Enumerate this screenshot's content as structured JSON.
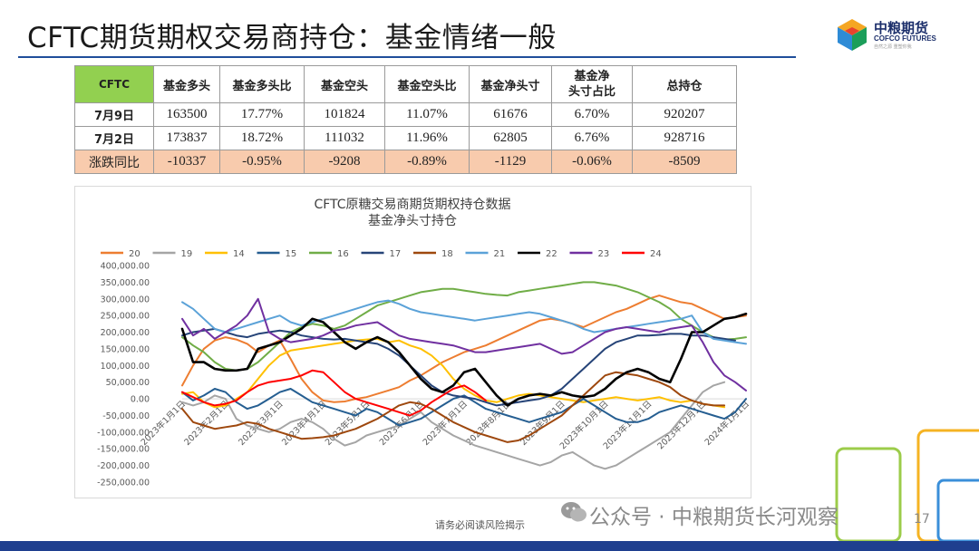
{
  "title": "CFTC期货期权交易商持仓：基金情绪一般",
  "logo": {
    "cn": "中粮期货",
    "en": "COFCO FUTURES",
    "tag": "自然之源 重塑你我"
  },
  "table": {
    "headers": [
      "CFTC",
      "基金多头",
      "基金多头比",
      "基金空头",
      "基金空头比",
      "基金净头寸",
      "基金净头寸占比",
      "总持仓"
    ],
    "header_lines": {
      "6a": "基金净",
      "6b": "头寸占比"
    },
    "rows": [
      {
        "label": "7月9日",
        "cells": [
          "163500",
          "17.77%",
          "101824",
          "11.07%",
          "61676",
          "6.70%",
          "920207"
        ]
      },
      {
        "label": "7月2日",
        "cells": [
          "173837",
          "18.72%",
          "111032",
          "11.96%",
          "62805",
          "6.76%",
          "928716"
        ]
      },
      {
        "label": "涨跌同比",
        "cells": [
          "-10337",
          "-0.95%",
          "-9208",
          "-0.89%",
          "-1129",
          "-0.06%",
          "-8509"
        ]
      }
    ]
  },
  "chart_data": {
    "type": "line",
    "title": "CFTC原糖交易商期货期权持仓数据",
    "subtitle": "基金净头寸持仓",
    "ylim": [
      -250000,
      400000
    ],
    "yticks": [
      "400,000.00",
      "350,000.00",
      "300,000.00",
      "250,000.00",
      "200,000.00",
      "150,000.00",
      "100,000.00",
      "50,000.00",
      "0.00",
      "-50,000.00",
      "-100,000.00",
      "-150,000.00",
      "-200,000.00",
      "-250,000.00"
    ],
    "xticks": [
      "2023年1月1日",
      "2023年2月1日",
      "2023年3月1日",
      "2023年4月1日",
      "2023年5月1日",
      "2023年6月1日",
      "2023年7月1日",
      "2023年8月1日",
      "2023年9月1日",
      "2023年10月1日",
      "2023年11月1日",
      "2023年12月1日",
      "2024年1月1日"
    ],
    "x_count": 53,
    "legend_position": "top",
    "grid": false,
    "series": [
      {
        "name": "20",
        "color": "#ed7d31",
        "width": 2,
        "values": [
          40000,
          100000,
          150000,
          175000,
          185000,
          178000,
          165000,
          140000,
          160000,
          175000,
          120000,
          60000,
          20000,
          -5000,
          -10000,
          -8000,
          0,
          5000,
          15000,
          25000,
          35000,
          55000,
          70000,
          90000,
          110000,
          125000,
          140000,
          150000,
          160000,
          175000,
          190000,
          205000,
          220000,
          235000,
          240000,
          235000,
          225000,
          215000,
          230000,
          245000,
          260000,
          270000,
          285000,
          300000,
          310000,
          300000,
          290000,
          285000,
          270000,
          255000,
          240000,
          245000,
          250000
        ]
      },
      {
        "name": "19",
        "color": "#a5a5a5",
        "width": 2,
        "values": [
          -10000,
          -20000,
          -10000,
          10000,
          0,
          -60000,
          -80000,
          -90000,
          -100000,
          -90000,
          -70000,
          -60000,
          -70000,
          -90000,
          -120000,
          -140000,
          -130000,
          -110000,
          -100000,
          -90000,
          -80000,
          -60000,
          -40000,
          -70000,
          -90000,
          -110000,
          -125000,
          -140000,
          -150000,
          -160000,
          -170000,
          -180000,
          -190000,
          -200000,
          -190000,
          -170000,
          -160000,
          -180000,
          -200000,
          -210000,
          -200000,
          -180000,
          -160000,
          -140000,
          -120000,
          -100000,
          -60000,
          -20000,
          20000,
          40000,
          50000,
          null,
          null
        ]
      },
      {
        "name": "14",
        "color": "#ffc000",
        "width": 2,
        "values": [
          15000,
          20000,
          -10000,
          -25000,
          -20000,
          0,
          20000,
          60000,
          100000,
          130000,
          145000,
          150000,
          155000,
          160000,
          165000,
          170000,
          175000,
          178000,
          180000,
          170000,
          175000,
          160000,
          150000,
          130000,
          100000,
          60000,
          30000,
          10000,
          -5000,
          -10000,
          0,
          10000,
          15000,
          10000,
          5000,
          0,
          -5000,
          -10000,
          -5000,
          0,
          5000,
          0,
          -5000,
          0,
          5000,
          -5000,
          -10000,
          -5000,
          -15000,
          -20000,
          -25000,
          null,
          null
        ]
      },
      {
        "name": "15",
        "color": "#255e91",
        "width": 2,
        "values": [
          20000,
          -5000,
          10000,
          30000,
          20000,
          -10000,
          -30000,
          -20000,
          0,
          20000,
          30000,
          10000,
          -10000,
          -20000,
          -30000,
          -40000,
          -50000,
          -30000,
          -40000,
          -60000,
          -80000,
          -70000,
          -60000,
          -40000,
          -20000,
          0,
          10000,
          -10000,
          -30000,
          -40000,
          -50000,
          -60000,
          -70000,
          -60000,
          -50000,
          -40000,
          -20000,
          0,
          -20000,
          -40000,
          -60000,
          -70000,
          -70000,
          -60000,
          -40000,
          -30000,
          -20000,
          -30000,
          -40000,
          -50000,
          -60000,
          -40000,
          0
        ]
      },
      {
        "name": "16",
        "color": "#70ad47",
        "width": 2,
        "values": [
          185000,
          160000,
          140000,
          110000,
          90000,
          85000,
          90000,
          110000,
          140000,
          170000,
          200000,
          215000,
          225000,
          220000,
          210000,
          220000,
          240000,
          260000,
          280000,
          290000,
          300000,
          310000,
          320000,
          325000,
          330000,
          330000,
          325000,
          320000,
          315000,
          312000,
          310000,
          320000,
          325000,
          330000,
          335000,
          340000,
          345000,
          350000,
          350000,
          345000,
          340000,
          330000,
          320000,
          305000,
          290000,
          270000,
          240000,
          220000,
          200000,
          185000,
          178000,
          180000,
          185000
        ]
      },
      {
        "name": "17",
        "color": "#264478",
        "width": 2,
        "values": [
          190000,
          200000,
          205000,
          210000,
          200000,
          190000,
          185000,
          195000,
          200000,
          205000,
          200000,
          190000,
          185000,
          180000,
          178000,
          180000,
          175000,
          170000,
          165000,
          150000,
          130000,
          100000,
          70000,
          40000,
          20000,
          10000,
          5000,
          0,
          -10000,
          -20000,
          -15000,
          -10000,
          -5000,
          0,
          10000,
          30000,
          60000,
          90000,
          120000,
          150000,
          170000,
          180000,
          190000,
          190000,
          192000,
          195000,
          195000,
          190000,
          190000,
          185000,
          180000,
          175000,
          null
        ]
      },
      {
        "name": "18",
        "color": "#9e480e",
        "width": 2,
        "values": [
          -30000,
          -70000,
          -80000,
          -90000,
          -85000,
          -80000,
          -70000,
          -75000,
          -90000,
          -100000,
          -110000,
          -120000,
          -118000,
          -115000,
          -110000,
          -100000,
          -90000,
          -75000,
          -60000,
          -40000,
          -20000,
          -10000,
          -15000,
          -30000,
          -50000,
          -70000,
          -85000,
          -100000,
          -110000,
          -120000,
          -130000,
          -125000,
          -110000,
          -90000,
          -70000,
          -50000,
          -20000,
          10000,
          40000,
          70000,
          80000,
          75000,
          70000,
          60000,
          50000,
          35000,
          10000,
          -5000,
          -15000,
          -20000,
          -20000,
          null,
          null
        ]
      },
      {
        "name": "21",
        "color": "#5ba2d8",
        "width": 2,
        "values": [
          290000,
          270000,
          240000,
          210000,
          200000,
          210000,
          220000,
          230000,
          240000,
          250000,
          230000,
          220000,
          230000,
          240000,
          250000,
          260000,
          270000,
          280000,
          290000,
          295000,
          285000,
          270000,
          260000,
          255000,
          250000,
          245000,
          240000,
          235000,
          240000,
          245000,
          250000,
          255000,
          260000,
          255000,
          245000,
          235000,
          225000,
          210000,
          200000,
          205000,
          210000,
          215000,
          220000,
          225000,
          230000,
          235000,
          240000,
          250000,
          200000,
          180000,
          175000,
          170000,
          165000
        ]
      },
      {
        "name": "22",
        "color": "#000000",
        "width": 2.6,
        "values": [
          210000,
          110000,
          110000,
          90000,
          85000,
          85000,
          90000,
          150000,
          160000,
          170000,
          190000,
          210000,
          240000,
          230000,
          200000,
          170000,
          150000,
          170000,
          185000,
          170000,
          140000,
          100000,
          60000,
          30000,
          20000,
          40000,
          80000,
          90000,
          50000,
          10000,
          -20000,
          0,
          10000,
          15000,
          10000,
          20000,
          10000,
          5000,
          10000,
          30000,
          60000,
          80000,
          90000,
          80000,
          60000,
          50000,
          120000,
          200000,
          200000,
          220000,
          240000,
          245000,
          255000
        ]
      },
      {
        "name": "23",
        "color": "#7030a0",
        "width": 2,
        "values": [
          240000,
          190000,
          210000,
          180000,
          200000,
          220000,
          250000,
          300000,
          200000,
          180000,
          170000,
          175000,
          180000,
          190000,
          205000,
          210000,
          220000,
          225000,
          230000,
          210000,
          190000,
          180000,
          175000,
          170000,
          165000,
          160000,
          150000,
          140000,
          140000,
          145000,
          150000,
          155000,
          160000,
          165000,
          150000,
          135000,
          140000,
          160000,
          180000,
          200000,
          210000,
          215000,
          210000,
          205000,
          200000,
          210000,
          215000,
          220000,
          170000,
          110000,
          70000,
          50000,
          25000
        ]
      },
      {
        "name": "24",
        "color": "#ff0000",
        "width": 2,
        "values": [
          20000,
          5000,
          -10000,
          -20000,
          -15000,
          -5000,
          20000,
          40000,
          50000,
          55000,
          60000,
          70000,
          85000,
          80000,
          50000,
          20000,
          0,
          -10000,
          -20000,
          -30000,
          -40000,
          -50000,
          -35000,
          -10000,
          10000,
          30000,
          40000,
          20000,
          -5000,
          null,
          null,
          null,
          null,
          null,
          null,
          null,
          null,
          null,
          null,
          null,
          null,
          null,
          null,
          null,
          null,
          null,
          null,
          null,
          null,
          null,
          null,
          null,
          null
        ]
      }
    ]
  },
  "footer_note": "请务必阅读风险揭示",
  "watermark": "公众号 · 中粮期货长河观察",
  "page_number": "17"
}
